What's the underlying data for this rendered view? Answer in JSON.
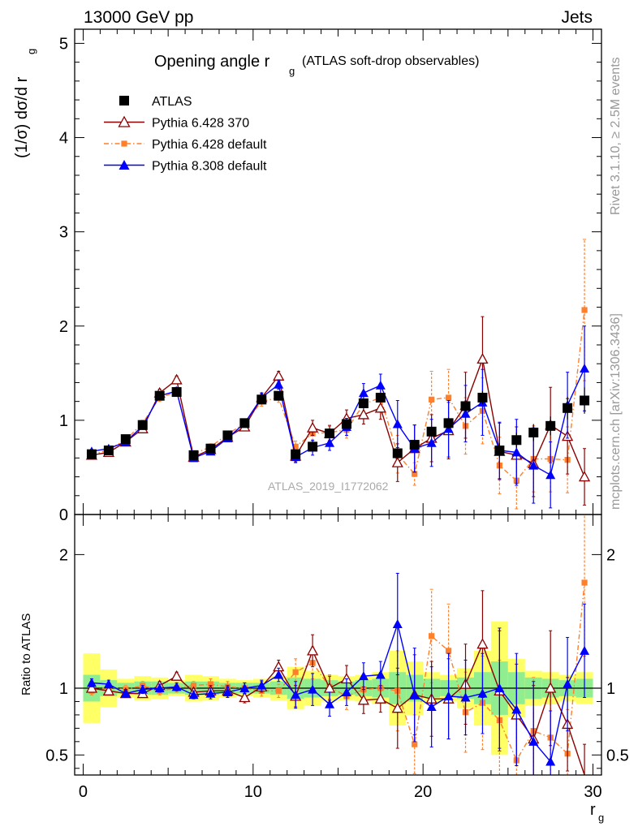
{
  "header": {
    "left": "13000 GeV pp",
    "right": "Jets"
  },
  "side_texts": {
    "rivet": "Rivet 3.1.10, ≥ 2.5M events",
    "mcplots": "mcplots.cern.ch [arXiv:1306.3436]"
  },
  "chart_data": [
    {
      "type": "scatter",
      "title_main": "Opening angle r",
      "title_sub": "g",
      "title_suffix": "(ATLAS soft-drop observables)",
      "ylabel": "(1/σ) dσ/d r",
      "ylabel_sub": "g",
      "xlim": [
        -0.5,
        30.5
      ],
      "ylim": [
        0,
        5.15
      ],
      "yticks": [
        0,
        1,
        2,
        3,
        4,
        5
      ],
      "watermark": "ATLAS_2019_I1772062",
      "legend_position": "top-left",
      "grid": false,
      "x": [
        0.5,
        1.5,
        2.5,
        3.5,
        4.5,
        5.5,
        6.5,
        7.5,
        8.5,
        9.5,
        10.5,
        11.5,
        12.5,
        13.5,
        14.5,
        15.5,
        16.5,
        17.5,
        18.5,
        19.5,
        20.5,
        21.5,
        22.5,
        23.5,
        24.5,
        25.5,
        26.5,
        27.5,
        28.5,
        29.5
      ],
      "series": [
        {
          "name": "ATLAS",
          "color": "#000000",
          "marker": "square",
          "values": [
            0.64,
            0.68,
            0.8,
            0.95,
            1.26,
            1.3,
            0.63,
            0.7,
            0.84,
            0.97,
            1.22,
            1.26,
            0.64,
            0.72,
            0.86,
            0.96,
            1.18,
            1.24,
            0.65,
            0.74,
            0.88,
            0.97,
            1.15,
            1.24,
            0.68,
            0.79,
            0.87,
            0.94,
            1.13,
            1.21
          ],
          "errors": [
            0.02,
            0.02,
            0.02,
            0.02,
            0.03,
            0.03,
            0.02,
            0.02,
            0.02,
            0.02,
            0.03,
            0.03,
            0.03,
            0.03,
            0.03,
            0.03,
            0.04,
            0.04,
            0.05,
            0.05,
            0.05,
            0.06,
            0.06,
            0.07,
            0.08,
            0.08,
            0.09,
            0.1,
            0.12,
            0.14
          ]
        },
        {
          "name": "Pythia 6.428 370",
          "color": "#8b0000",
          "marker": "open-triangle",
          "values": [
            0.63,
            0.66,
            0.77,
            0.91,
            1.29,
            1.43,
            0.61,
            0.69,
            0.82,
            0.93,
            1.24,
            1.47,
            0.62,
            0.92,
            0.86,
            1.02,
            1.06,
            1.13,
            0.55,
            0.7,
            0.81,
            0.89,
            1.16,
            1.65,
            0.67,
            0.63,
            0.54,
            0.95,
            0.83,
            0.4
          ],
          "errors": [
            0.02,
            0.02,
            0.03,
            0.03,
            0.04,
            0.04,
            0.02,
            0.03,
            0.03,
            0.04,
            0.05,
            0.05,
            0.06,
            0.08,
            0.08,
            0.09,
            0.1,
            0.12,
            0.2,
            0.25,
            0.25,
            0.3,
            0.35,
            0.45,
            0.3,
            0.3,
            0.35,
            0.4,
            0.4,
            0.3
          ]
        },
        {
          "name": "Pythia 6.428 default",
          "color": "#ff7f2a",
          "marker": "square",
          "values": [
            0.63,
            0.69,
            0.79,
            0.97,
            1.24,
            1.3,
            0.64,
            0.72,
            0.85,
            0.97,
            1.2,
            1.24,
            0.72,
            0.86,
            0.87,
            0.9,
            1.17,
            1.24,
            0.64,
            0.43,
            1.22,
            1.24,
            0.94,
            1.1,
            0.52,
            0.36,
            0.59,
            0.59,
            0.58,
            2.17
          ],
          "errors": [
            0.02,
            0.02,
            0.03,
            0.03,
            0.04,
            0.04,
            0.02,
            0.03,
            0.03,
            0.04,
            0.05,
            0.05,
            0.06,
            0.08,
            0.08,
            0.09,
            0.1,
            0.12,
            0.2,
            0.12,
            0.3,
            0.3,
            0.3,
            0.35,
            0.3,
            0.3,
            0.35,
            0.35,
            0.35,
            0.75
          ]
        },
        {
          "name": "Pythia 8.308 default",
          "color": "#0000ff",
          "marker": "triangle",
          "values": [
            0.67,
            0.7,
            0.77,
            0.94,
            1.26,
            1.31,
            0.6,
            0.67,
            0.81,
            0.97,
            1.24,
            1.38,
            0.61,
            0.71,
            0.76,
            0.93,
            1.29,
            1.37,
            0.96,
            0.7,
            0.76,
            0.91,
            1.07,
            1.19,
            0.68,
            0.66,
            0.52,
            0.42,
            1.16,
            1.55
          ],
          "errors": [
            0.02,
            0.02,
            0.03,
            0.03,
            0.04,
            0.04,
            0.02,
            0.03,
            0.03,
            0.04,
            0.05,
            0.05,
            0.06,
            0.08,
            0.08,
            0.09,
            0.1,
            0.12,
            0.25,
            0.25,
            0.25,
            0.3,
            0.3,
            0.35,
            0.3,
            0.35,
            0.4,
            0.35,
            0.35,
            0.45
          ]
        }
      ]
    },
    {
      "type": "scatter",
      "ylabel": "Ratio to ATLAS",
      "xlabel": "r",
      "xlabel_sub": "g",
      "xlim": [
        -0.5,
        30.5
      ],
      "ylim": [
        0.35,
        2.3
      ],
      "yticks": [
        0.5,
        1,
        2
      ],
      "ytick_labels": [
        "0.5",
        "1",
        "2"
      ],
      "xticks": [
        0,
        10,
        20,
        30
      ],
      "xtick_labels": [
        "0",
        "10",
        "20",
        "30"
      ],
      "reference_line": 1,
      "band_colors": {
        "inner": "#90ee90",
        "outer": "#ffff66"
      },
      "bands": [
        {
          "x": 0.5,
          "inner": 0.1,
          "outer": 0.26
        },
        {
          "x": 1.5,
          "inner": 0.06,
          "outer": 0.14
        },
        {
          "x": 2.5,
          "inner": 0.04,
          "outer": 0.07
        },
        {
          "x": 3.5,
          "inner": 0.05,
          "outer": 0.09
        },
        {
          "x": 4.5,
          "inner": 0.05,
          "outer": 0.08
        },
        {
          "x": 5.5,
          "inner": 0.04,
          "outer": 0.06
        },
        {
          "x": 6.5,
          "inner": 0.05,
          "outer": 0.1
        },
        {
          "x": 7.5,
          "inner": 0.05,
          "outer": 0.09
        },
        {
          "x": 8.5,
          "inner": 0.04,
          "outer": 0.07
        },
        {
          "x": 9.5,
          "inner": 0.04,
          "outer": 0.06
        },
        {
          "x": 10.5,
          "inner": 0.04,
          "outer": 0.07
        },
        {
          "x": 11.5,
          "inner": 0.05,
          "outer": 0.09
        },
        {
          "x": 12.5,
          "inner": 0.08,
          "outer": 0.16
        },
        {
          "x": 13.5,
          "inner": 0.07,
          "outer": 0.13
        },
        {
          "x": 14.5,
          "inner": 0.06,
          "outer": 0.1
        },
        {
          "x": 15.5,
          "inner": 0.05,
          "outer": 0.09
        },
        {
          "x": 16.5,
          "inner": 0.06,
          "outer": 0.1
        },
        {
          "x": 17.5,
          "inner": 0.07,
          "outer": 0.12
        },
        {
          "x": 18.5,
          "inner": 0.12,
          "outer": 0.28
        },
        {
          "x": 19.5,
          "inner": 0.1,
          "outer": 0.2
        },
        {
          "x": 20.5,
          "inner": 0.07,
          "outer": 0.12
        },
        {
          "x": 21.5,
          "inner": 0.06,
          "outer": 0.1
        },
        {
          "x": 22.5,
          "inner": 0.08,
          "outer": 0.15
        },
        {
          "x": 23.5,
          "inner": 0.12,
          "outer": 0.28
        },
        {
          "x": 24.5,
          "inner": 0.2,
          "outer": 0.5
        },
        {
          "x": 25.5,
          "inner": 0.12,
          "outer": 0.22
        },
        {
          "x": 26.5,
          "inner": 0.08,
          "outer": 0.13
        },
        {
          "x": 27.5,
          "inner": 0.07,
          "outer": 0.12
        },
        {
          "x": 28.5,
          "inner": 0.06,
          "outer": 0.1
        },
        {
          "x": 29.5,
          "inner": 0.07,
          "outer": 0.12
        }
      ],
      "series": [
        {
          "name": "Pythia 6.428 370",
          "color": "#8b0000",
          "marker": "open-triangle",
          "values": [
            1.0,
            0.98,
            0.96,
            0.96,
            1.02,
            1.09,
            0.97,
            0.98,
            0.98,
            0.93,
            1.01,
            1.16,
            0.94,
            1.28,
            1.0,
            1.07,
            0.91,
            0.92,
            0.85,
            0.95,
            0.92,
            0.92,
            1.03,
            1.33,
            0.98,
            0.8,
            0.62,
            1.0,
            0.73,
            0.33
          ],
          "errors": [
            0.03,
            0.03,
            0.03,
            0.03,
            0.03,
            0.03,
            0.03,
            0.04,
            0.04,
            0.04,
            0.04,
            0.05,
            0.08,
            0.12,
            0.09,
            0.1,
            0.1,
            0.1,
            0.3,
            0.3,
            0.28,
            0.3,
            0.3,
            0.4,
            0.45,
            0.38,
            0.4,
            0.43,
            0.35,
            0.25
          ]
        },
        {
          "name": "Pythia 6.428 default",
          "color": "#ff7f2a",
          "marker": "square",
          "values": [
            0.98,
            1.01,
            0.99,
            1.02,
            0.98,
            1.0,
            1.02,
            1.03,
            1.01,
            1.0,
            0.98,
            0.98,
            1.12,
            1.19,
            1.01,
            0.94,
            0.99,
            1.0,
            0.98,
            0.58,
            1.39,
            1.28,
            0.82,
            0.89,
            0.76,
            0.46,
            0.68,
            0.63,
            0.51,
            1.79
          ],
          "errors": [
            0.03,
            0.03,
            0.03,
            0.03,
            0.03,
            0.03,
            0.03,
            0.04,
            0.04,
            0.04,
            0.04,
            0.05,
            0.1,
            0.12,
            0.09,
            0.1,
            0.1,
            0.1,
            0.3,
            0.22,
            0.35,
            0.35,
            0.3,
            0.35,
            0.45,
            0.38,
            0.4,
            0.4,
            0.33,
            0.55
          ]
        },
        {
          "name": "Pythia 8.308 default",
          "color": "#0000ff",
          "marker": "triangle",
          "values": [
            1.04,
            1.03,
            0.96,
            0.99,
            1.0,
            1.01,
            0.95,
            0.96,
            0.97,
            1.0,
            1.02,
            1.1,
            0.95,
            0.99,
            0.88,
            0.97,
            1.09,
            1.1,
            1.48,
            0.95,
            0.86,
            0.94,
            0.93,
            0.96,
            1.0,
            0.84,
            0.6,
            0.45,
            1.03,
            1.28
          ],
          "errors": [
            0.03,
            0.03,
            0.03,
            0.03,
            0.03,
            0.03,
            0.03,
            0.04,
            0.04,
            0.04,
            0.04,
            0.05,
            0.1,
            0.12,
            0.09,
            0.1,
            0.1,
            0.1,
            0.38,
            0.35,
            0.3,
            0.32,
            0.28,
            0.3,
            0.45,
            0.42,
            0.45,
            0.38,
            0.35,
            0.35
          ]
        }
      ]
    }
  ]
}
